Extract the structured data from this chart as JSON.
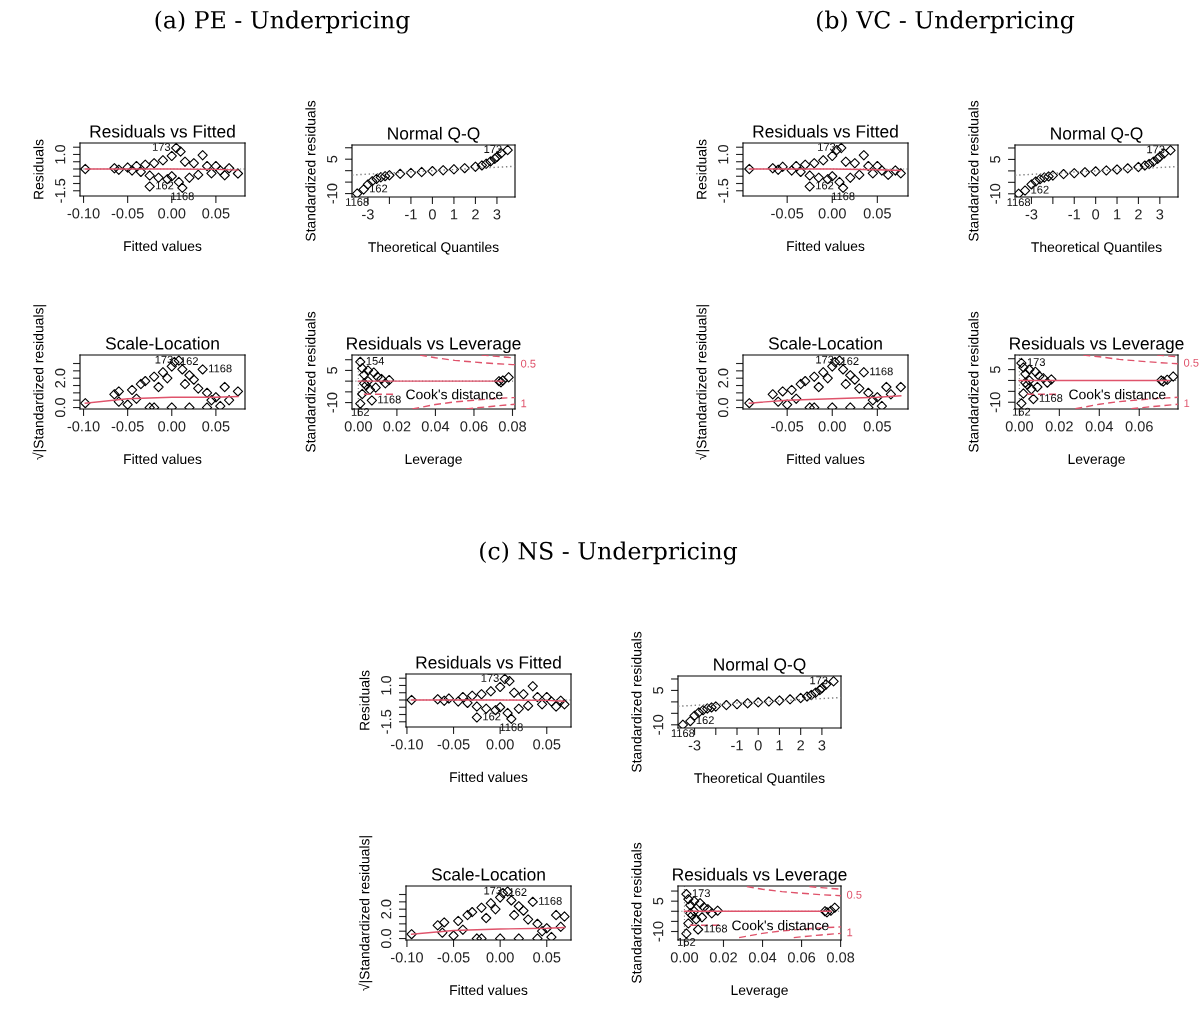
{
  "chart_data": [
    {
      "type": "scatter",
      "title": "Residuals vs Fitted",
      "xlabel": "Fitted values",
      "ylabel": "Residuals",
      "annotations": [
        "(a) PE - Underpricing",
        {
          "text": "173",
          "x": 0.005,
          "y": 1.45
        },
        {
          "text": "162",
          "x": -0.025,
          "y": -1.2
        },
        {
          "text": "1168",
          "x": 0.012,
          "y": -1.3
        }
      ],
      "xlim": [
        -0.104,
        0.083
      ],
      "xticks": [
        {
          "value": -0.1,
          "label": "-0.10"
        },
        {
          "value": -0.05,
          "label": "-0.05"
        },
        {
          "value": 0,
          "label": "0.00"
        },
        {
          "value": 0.05,
          "label": "0.05"
        }
      ],
      "ylim": [
        -1.86,
        1.79
      ],
      "yticks": [
        {
          "value": -1.5,
          "label": "-1.5"
        },
        {
          "value": -1,
          "label": null
        },
        {
          "value": -0.5,
          "label": null
        },
        {
          "value": 0,
          "label": null
        },
        {
          "value": 0.5,
          "label": null
        },
        {
          "value": 1,
          "label": "1.0"
        },
        {
          "value": 1.5,
          "label": null
        }
      ],
      "ref_lines": [
        {
          "axis": "y",
          "value": 0,
          "color": "#808080",
          "line_style": "dotted"
        }
      ],
      "series": [
        {
          "color": "#000000",
          "marker": "diamond",
          "x": [
            -0.098,
            -0.065,
            -0.06,
            -0.05,
            -0.045,
            -0.04,
            -0.035,
            -0.03,
            -0.025,
            -0.02,
            -0.015,
            -0.01,
            -0.005,
            0.0,
            0.0,
            0.005,
            0.01,
            0.008,
            0.012,
            0.015,
            0.02,
            0.025,
            0.03,
            0.035,
            0.04,
            0.045,
            0.05,
            0.055,
            0.06,
            0.065,
            0.075,
            -0.025
          ],
          "values": [
            0.0,
            0.05,
            -0.05,
            0.1,
            -0.1,
            0.2,
            -0.2,
            0.3,
            -0.45,
            0.4,
            -0.6,
            0.6,
            -0.7,
            0.9,
            -0.5,
            1.45,
            1.2,
            -0.9,
            -1.3,
            0.5,
            -0.6,
            0.4,
            -0.4,
            0.95,
            0.2,
            -0.3,
            0.2,
            -0.1,
            -0.43,
            0.05,
            -0.31,
            -1.2
          ]
        },
        {
          "type": "line",
          "color": "#df536b",
          "x": [
            -0.098,
            -0.05,
            0.0,
            0.05,
            0.075
          ],
          "values": [
            0.0,
            0.0,
            0.0,
            -0.03,
            -0.08
          ]
        }
      ]
    },
    {
      "type": "scatter",
      "title": "Normal Q-Q",
      "xlabel": "Theoretical Quantiles",
      "ylabel": "Standardized residuals",
      "annotations": [
        {
          "text": "173",
          "x": 3.5,
          "y": 9.0
        },
        {
          "text": "162",
          "x": -3.2,
          "y": -8.2
        },
        {
          "text": "1168",
          "x": -3.5,
          "y": -10
        }
      ],
      "xlim": [
        -3.74,
        3.84
      ],
      "xticks": [
        {
          "value": -3,
          "label": "-3"
        },
        {
          "value": -2,
          "label": null
        },
        {
          "value": -1,
          "label": "-1"
        },
        0,
        1,
        2,
        3
      ],
      "ylim": [
        -11.5,
        11.2
      ],
      "yticks": [
        {
          "value": -10,
          "label": "-10"
        },
        {
          "value": -5,
          "label": null
        },
        {
          "value": 0,
          "label": null
        },
        5,
        {
          "value": 10,
          "label": null
        }
      ],
      "series": [
        {
          "color": "#000000",
          "marker": "diamond",
          "x": [
            -3.5,
            -3.2,
            -3.0,
            -2.8,
            -2.6,
            -2.4,
            -2.2,
            -2.0,
            -1.5,
            -1.0,
            -0.5,
            0.0,
            0.5,
            1.0,
            1.5,
            2.0,
            2.3,
            2.5,
            2.7,
            2.9,
            3.0,
            3.2,
            3.5
          ],
          "values": [
            -10,
            -8.2,
            -6.0,
            -4.6,
            -3.6,
            -2.9,
            -2.4,
            -2.0,
            -1.4,
            -1.0,
            -0.6,
            -0.2,
            0.2,
            0.6,
            1.1,
            1.7,
            2.3,
            3.0,
            4.0,
            5.2,
            6.0,
            7.6,
            9.0
          ]
        },
        {
          "type": "line",
          "color": "#808080",
          "line_style": "dotted",
          "x": [
            -3.74,
            3.84
          ],
          "values": [
            -1.9,
            1.9
          ]
        }
      ]
    },
    {
      "type": "scatter",
      "title": "Scale-Location",
      "xlabel": "Fitted values",
      "ylabel": "√|Standardized residuals|",
      "annotations": [
        {
          "text": "162",
          "x": 0.003,
          "y": 3.1
        },
        {
          "text": "173",
          "x": 0.008,
          "y": 3.2
        },
        {
          "text": "1168",
          "x": 0.035,
          "y": 2.6
        }
      ],
      "xlim": [
        -0.104,
        0.083
      ],
      "xticks": [
        {
          "value": -0.1,
          "label": "-0.10"
        },
        {
          "value": -0.05,
          "label": "-0.05"
        },
        {
          "value": 0,
          "label": "0.00"
        },
        {
          "value": 0.05,
          "label": "0.05"
        }
      ],
      "ylim": [
        -0.1,
        3.58
      ],
      "yticks": [
        {
          "value": 0,
          "label": "0.0"
        },
        {
          "value": 0.5,
          "label": null
        },
        {
          "value": 1,
          "label": null
        },
        {
          "value": 1.5,
          "label": null
        },
        {
          "value": 2,
          "label": "2.0"
        },
        {
          "value": 2.5,
          "label": null
        },
        {
          "value": 3,
          "label": null
        }
      ],
      "series": [
        {
          "color": "#000000",
          "marker": "diamond",
          "x": [
            -0.098,
            -0.065,
            -0.06,
            -0.06,
            -0.05,
            -0.045,
            -0.04,
            -0.035,
            -0.03,
            -0.025,
            -0.02,
            -0.015,
            -0.01,
            -0.005,
            0.0,
            0.003,
            0.008,
            0.012,
            0.015,
            0.02,
            0.025,
            0.03,
            0.035,
            0.04,
            0.045,
            0.05,
            0.055,
            0.06,
            0.065,
            0.075,
            0.0,
            0.02,
            0.04,
            -0.02
          ],
          "values": [
            0.3,
            0.9,
            0.4,
            1.1,
            0.2,
            1.2,
            0.6,
            1.6,
            1.8,
            0.0,
            2.1,
            1.4,
            2.4,
            2.0,
            2.8,
            3.1,
            3.2,
            2.6,
            1.6,
            2.2,
            1.9,
            1.3,
            2.6,
            1.0,
            0.5,
            0.7,
            0.1,
            1.4,
            0.5,
            1.1,
            0.0,
            0.0,
            0.0,
            0.0
          ]
        },
        {
          "type": "line",
          "color": "#df536b",
          "x": [
            -0.098,
            -0.05,
            0.0,
            0.05,
            0.075
          ],
          "values": [
            0.3,
            0.6,
            0.7,
            0.7,
            0.75
          ]
        }
      ]
    },
    {
      "type": "scatter",
      "title": "Residuals vs Leverage",
      "xlabel": "Leverage",
      "ylabel": "Standardized residuals",
      "legend": "bottom",
      "annotations": [
        {
          "text": "154",
          "x": 0.001,
          "y": 9.0
        },
        {
          "text": "162",
          "x": 0.001,
          "y": -10.5
        },
        {
          "text": "1168",
          "x": 0.007,
          "y": -9.0
        },
        {
          "text": "0.5",
          "x": 0.0813,
          "y": 7.7
        },
        {
          "text": "1",
          "x": 0.0813,
          "y": -10.8
        }
      ],
      "xlim": [
        -0.0033,
        0.0813
      ],
      "xticks": [
        {
          "value": 0,
          "label": "0.00"
        },
        {
          "value": 0.02,
          "label": "0.02"
        },
        {
          "value": 0.04,
          "label": "0.04"
        },
        {
          "value": 0.06,
          "label": "0.06"
        },
        {
          "value": 0.08,
          "label": "0.08"
        }
      ],
      "ylim": [
        -13,
        12.2
      ],
      "yticks": [
        {
          "value": -10,
          "label": "-10"
        },
        {
          "value": -5,
          "label": null
        },
        {
          "value": 0,
          "label": null
        },
        5,
        {
          "value": 10,
          "label": null
        }
      ],
      "ref_lines": [
        {
          "axis": "y",
          "value": 0,
          "color": "#808080",
          "line_style": "dotted"
        },
        {
          "axis": "x",
          "value": 0,
          "color": "#808080",
          "line_style": "dotted"
        }
      ],
      "series": [
        {
          "color": "#000000",
          "marker": "diamond",
          "x": [
            0.001,
            0.002,
            0.003,
            0.004,
            0.001,
            0.002,
            0.005,
            0.006,
            0.007,
            0.008,
            0.009,
            0.01,
            0.012,
            0.014,
            0.016,
            0.003,
            0.005,
            0.073,
            0.074,
            0.075,
            0.078
          ],
          "values": [
            9.0,
            6.0,
            3.0,
            -2.0,
            -10.5,
            -6.0,
            5.0,
            -4.0,
            -9.0,
            4.0,
            -3.0,
            2.0,
            1.0,
            -1.0,
            0.5,
            -1.0,
            0.0,
            0.0,
            -0.5,
            0.3,
            1.8
          ]
        },
        {
          "type": "line",
          "color": "#df536b",
          "x": [
            0.0,
            0.015,
            0.075
          ],
          "values": [
            0.0,
            0.0,
            0.0
          ]
        },
        {
          "type": "line",
          "name": "Cook's distance",
          "color": "#df536b",
          "line_style": "dashed",
          "x": [
            0.032,
            0.04,
            0.05,
            0.06,
            0.07,
            0.08,
            0.0813
          ],
          "values": [
            12.2,
            10.9,
            9.7,
            8.9,
            8.2,
            7.7,
            7.7
          ]
        },
        {
          "type": "line",
          "color": "#df536b",
          "line_style": "dashed",
          "x": [
            0.028,
            0.04,
            0.05,
            0.06,
            0.07,
            0.08,
            0.0813
          ],
          "values": [
            -13.0,
            -10.9,
            -9.7,
            -8.9,
            -8.2,
            -7.7,
            -7.7
          ]
        },
        {
          "type": "line",
          "color": "#df536b",
          "line_style": "dashed",
          "x": [
            0.064,
            0.07,
            0.08,
            0.0813
          ],
          "values": [
            12.2,
            11.7,
            10.9,
            10.8
          ]
        },
        {
          "type": "line",
          "color": "#df536b",
          "line_style": "dashed",
          "x": [
            0.056,
            0.06,
            0.07,
            0.08,
            0.0813
          ],
          "values": [
            -13.0,
            -12.6,
            -11.7,
            -10.9,
            -10.8
          ]
        }
      ]
    },
    {
      "type": "scatter",
      "title": "Residuals vs Fitted",
      "xlabel": "Fitted values",
      "ylabel": "Residuals",
      "annotations": [
        "(b) VC - Underpricing",
        {
          "text": "173",
          "x": 0.01,
          "y": 1.45
        },
        {
          "text": "162",
          "x": -0.025,
          "y": -1.2
        },
        {
          "text": "1168",
          "x": 0.012,
          "y": -1.3
        }
      ],
      "xlim": [
        -0.099,
        0.084
      ],
      "xticks": [
        {
          "value": -0.05,
          "label": "-0.05"
        },
        {
          "value": 0,
          "label": "0.00"
        },
        {
          "value": 0.05,
          "label": "0.05"
        }
      ],
      "ylim": [
        -1.86,
        1.79
      ],
      "yticks": [
        {
          "value": -1.5,
          "label": "-1.5"
        },
        {
          "value": -1,
          "label": null
        },
        {
          "value": -0.5,
          "label": null
        },
        {
          "value": 0,
          "label": null
        },
        {
          "value": 0.5,
          "label": null
        },
        {
          "value": 1,
          "label": "1.0"
        },
        {
          "value": 1.5,
          "label": null
        }
      ],
      "ref_lines": [
        {
          "axis": "y",
          "value": 0,
          "color": "#808080",
          "line_style": "dotted"
        }
      ],
      "series": [
        {
          "color": "#000000",
          "marker": "diamond",
          "x": [
            -0.092,
            -0.066,
            -0.06,
            -0.055,
            -0.045,
            -0.04,
            -0.035,
            -0.03,
            -0.025,
            -0.02,
            -0.015,
            -0.01,
            -0.005,
            0.0,
            0.0,
            0.005,
            0.01,
            0.008,
            0.012,
            0.015,
            0.02,
            0.025,
            0.03,
            0.035,
            0.04,
            0.045,
            0.05,
            0.055,
            0.062,
            0.07,
            0.076,
            -0.025
          ],
          "values": [
            0.0,
            0.05,
            -0.05,
            0.15,
            -0.1,
            0.2,
            -0.2,
            0.3,
            -0.45,
            0.4,
            -0.6,
            0.6,
            -0.7,
            0.9,
            -0.5,
            1.3,
            1.45,
            -0.9,
            -1.3,
            0.5,
            -0.6,
            0.4,
            -0.4,
            0.95,
            0.2,
            -0.3,
            0.2,
            -0.1,
            -0.4,
            -0.1,
            -0.3,
            -1.2
          ]
        },
        {
          "type": "line",
          "color": "#df536b",
          "x": [
            -0.092,
            -0.05,
            0.0,
            0.05,
            0.076
          ],
          "values": [
            0.0,
            0.0,
            0.0,
            -0.05,
            -0.1
          ]
        }
      ]
    },
    {
      "type": "scatter",
      "title": "Normal Q-Q",
      "xlabel": "Theoretical Quantiles",
      "ylabel": "Standardized residuals",
      "annotations": [
        {
          "text": "173",
          "x": 3.5,
          "y": 9.0
        },
        {
          "text": "162",
          "x": -3.3,
          "y": -8.6
        },
        {
          "text": "1168",
          "x": -3.6,
          "y": -10
        }
      ],
      "xlim": [
        -3.77,
        3.85
      ],
      "xticks": [
        {
          "value": -3,
          "label": "-3"
        },
        {
          "value": -2,
          "label": null
        },
        {
          "value": -1,
          "label": "-1"
        },
        0,
        1,
        2,
        3
      ],
      "ylim": [
        -11.4,
        11.3
      ],
      "yticks": [
        {
          "value": -10,
          "label": "-10"
        },
        {
          "value": -5,
          "label": null
        },
        {
          "value": 0,
          "label": null
        },
        5,
        {
          "value": 10,
          "label": null
        }
      ],
      "series": [
        {
          "color": "#000000",
          "marker": "diamond",
          "x": [
            -3.6,
            -3.3,
            -3.0,
            -2.8,
            -2.6,
            -2.4,
            -2.2,
            -2.0,
            -1.5,
            -1.0,
            -0.5,
            0.0,
            0.5,
            1.0,
            1.5,
            2.0,
            2.3,
            2.5,
            2.7,
            2.9,
            3.0,
            3.2,
            3.5
          ],
          "values": [
            -10,
            -8.6,
            -5.9,
            -4.6,
            -3.6,
            -2.9,
            -2.4,
            -2.0,
            -1.4,
            -1.0,
            -0.6,
            -0.2,
            0.2,
            0.6,
            1.1,
            1.7,
            2.3,
            3.0,
            4.0,
            5.3,
            6.2,
            7.6,
            9.0
          ]
        },
        {
          "type": "line",
          "color": "#808080",
          "line_style": "dotted",
          "x": [
            -3.77,
            3.85
          ],
          "values": [
            -1.9,
            1.9
          ]
        }
      ]
    },
    {
      "type": "scatter",
      "title": "Scale-Location",
      "xlabel": "Fitted values",
      "ylabel": "√|Standardized residuals|",
      "annotations": [
        {
          "text": "162",
          "x": 0.003,
          "y": 3.1
        },
        {
          "text": "173",
          "x": 0.008,
          "y": 3.2
        },
        {
          "text": "1168",
          "x": 0.035,
          "y": 2.4
        }
      ],
      "xlim": [
        -0.099,
        0.084
      ],
      "xticks": [
        {
          "value": -0.05,
          "label": "-0.05"
        },
        {
          "value": 0,
          "label": "0.00"
        },
        {
          "value": 0.05,
          "label": "0.05"
        }
      ],
      "ylim": [
        -0.1,
        3.58
      ],
      "yticks": [
        {
          "value": 0,
          "label": "0.0"
        },
        {
          "value": 0.5,
          "label": null
        },
        {
          "value": 1,
          "label": null
        },
        {
          "value": 1.5,
          "label": null
        },
        {
          "value": 2,
          "label": "2.0"
        },
        {
          "value": 2.5,
          "label": null
        },
        {
          "value": 3,
          "label": null
        }
      ],
      "series": [
        {
          "color": "#000000",
          "marker": "diamond",
          "x": [
            -0.092,
            -0.066,
            -0.06,
            -0.055,
            -0.05,
            -0.045,
            -0.04,
            -0.035,
            -0.03,
            -0.025,
            -0.02,
            -0.015,
            -0.01,
            -0.005,
            0.0,
            0.003,
            0.008,
            0.012,
            0.015,
            0.02,
            0.025,
            0.03,
            0.035,
            0.04,
            0.045,
            0.05,
            0.055,
            0.06,
            0.065,
            0.076,
            0.0,
            0.02,
            0.04,
            -0.02
          ],
          "values": [
            0.3,
            0.9,
            0.4,
            1.1,
            0.2,
            1.2,
            0.6,
            1.6,
            1.8,
            0.0,
            2.1,
            1.4,
            2.4,
            2.0,
            2.8,
            3.1,
            3.2,
            2.6,
            1.6,
            2.2,
            1.9,
            1.3,
            2.4,
            1.0,
            0.5,
            0.7,
            0.1,
            1.4,
            0.9,
            1.4,
            0.0,
            0.0,
            0.0,
            0.0
          ]
        },
        {
          "type": "line",
          "color": "#df536b",
          "x": [
            -0.092,
            -0.05,
            0.0,
            0.05,
            0.076
          ],
          "values": [
            0.3,
            0.5,
            0.6,
            0.7,
            0.8
          ]
        }
      ]
    },
    {
      "type": "scatter",
      "title": "Residuals vs Leverage",
      "xlabel": "Leverage",
      "ylabel": "Standardized residuals",
      "legend": "bottom",
      "annotations": [
        {
          "text": "173",
          "x": 0.001,
          "y": 8.0
        },
        {
          "text": "162",
          "x": 0.001,
          "y": -10.5
        },
        {
          "text": "1168",
          "x": 0.007,
          "y": -8.5
        },
        {
          "text": "0.5",
          "x": 0.0794,
          "y": 7.7
        },
        {
          "text": "1",
          "x": 0.0794,
          "y": -10.9
        }
      ],
      "xlim": [
        -0.0022,
        0.0794
      ],
      "xticks": [
        {
          "value": 0,
          "label": "0.00"
        },
        {
          "value": 0.02,
          "label": "0.02"
        },
        {
          "value": 0.04,
          "label": "0.04"
        },
        {
          "value": 0.06,
          "label": "0.06"
        }
      ],
      "ylim": [
        -13.1,
        11.7
      ],
      "yticks": [
        {
          "value": -10,
          "label": "-10"
        },
        {
          "value": -5,
          "label": null
        },
        {
          "value": 0,
          "label": null
        },
        5,
        {
          "value": 10,
          "label": null
        }
      ],
      "ref_lines": [
        {
          "axis": "y",
          "value": 0,
          "color": "#808080",
          "line_style": "dotted"
        },
        {
          "axis": "x",
          "value": 0,
          "color": "#808080",
          "line_style": "dotted"
        }
      ],
      "series": [
        {
          "color": "#000000",
          "marker": "diamond",
          "x": [
            0.001,
            0.002,
            0.003,
            0.004,
            0.001,
            0.002,
            0.005,
            0.006,
            0.007,
            0.008,
            0.009,
            0.01,
            0.012,
            0.014,
            0.016,
            0.003,
            0.005,
            0.071,
            0.072,
            0.074,
            0.077
          ],
          "values": [
            8.0,
            6.0,
            3.0,
            -2.0,
            -10.5,
            -6.0,
            5.0,
            -4.0,
            -8.5,
            4.0,
            -3.0,
            2.0,
            1.0,
            -1.0,
            0.5,
            -1.0,
            0.0,
            0.0,
            -0.5,
            0.3,
            1.8
          ]
        },
        {
          "type": "line",
          "color": "#df536b",
          "x": [
            0.0,
            0.015,
            0.075
          ],
          "values": [
            0.0,
            0.0,
            0.0
          ]
        },
        {
          "type": "line",
          "name": "Cook's distance",
          "color": "#df536b",
          "line_style": "dashed",
          "x": [
            0.032,
            0.04,
            0.05,
            0.06,
            0.07,
            0.0794
          ],
          "values": [
            11.7,
            10.9,
            9.7,
            8.9,
            8.2,
            7.7
          ]
        },
        {
          "type": "line",
          "color": "#df536b",
          "line_style": "dashed",
          "x": [
            0.028,
            0.04,
            0.05,
            0.06,
            0.07,
            0.0794
          ],
          "values": [
            -13.0,
            -10.9,
            -9.7,
            -8.9,
            -8.2,
            -7.7
          ]
        },
        {
          "type": "line",
          "color": "#df536b",
          "line_style": "dashed",
          "x": [
            0.069,
            0.075,
            0.0794
          ],
          "values": [
            11.7,
            11.2,
            10.9
          ]
        },
        {
          "type": "line",
          "color": "#df536b",
          "line_style": "dashed",
          "x": [
            0.056,
            0.06,
            0.07,
            0.0794
          ],
          "values": [
            -13.0,
            -12.6,
            -11.7,
            -10.9
          ]
        }
      ]
    },
    {
      "type": "scatter",
      "title": "Residuals vs Fitted",
      "xlabel": "Fitted values",
      "ylabel": "Residuals",
      "annotations": [
        "(c) NS - Underpricing",
        {
          "text": "173",
          "x": 0.005,
          "y": 1.45
        },
        {
          "text": "162",
          "x": -0.025,
          "y": -1.2
        },
        {
          "text": "1168",
          "x": 0.012,
          "y": -1.3
        }
      ],
      "xlim": [
        -0.101,
        0.076
      ],
      "xticks": [
        {
          "value": -0.1,
          "label": "-0.10"
        },
        {
          "value": -0.05,
          "label": "-0.05"
        },
        {
          "value": 0,
          "label": "0.00"
        },
        {
          "value": 0.05,
          "label": "0.05"
        }
      ],
      "ylim": [
        -1.86,
        1.79
      ],
      "yticks": [
        {
          "value": -1.5,
          "label": "-1.5"
        },
        {
          "value": -1,
          "label": null
        },
        {
          "value": -0.5,
          "label": null
        },
        {
          "value": 0,
          "label": null
        },
        {
          "value": 0.5,
          "label": null
        },
        {
          "value": 1,
          "label": "1.0"
        },
        {
          "value": 1.5,
          "label": null
        }
      ],
      "ref_lines": [
        {
          "axis": "y",
          "value": 0,
          "color": "#808080",
          "line_style": "dotted"
        }
      ],
      "series": [
        {
          "color": "#000000",
          "marker": "diamond",
          "x": [
            -0.095,
            -0.067,
            -0.06,
            -0.055,
            -0.045,
            -0.04,
            -0.035,
            -0.03,
            -0.025,
            -0.02,
            -0.015,
            -0.01,
            -0.005,
            0.0,
            0.0,
            0.005,
            0.01,
            0.008,
            0.012,
            0.015,
            0.02,
            0.025,
            0.03,
            0.035,
            0.04,
            0.045,
            0.05,
            0.055,
            0.06,
            0.065,
            0.069,
            -0.025
          ],
          "values": [
            0.0,
            0.05,
            -0.05,
            0.1,
            -0.1,
            0.2,
            -0.2,
            0.3,
            -0.45,
            0.4,
            -0.6,
            0.6,
            -0.7,
            0.9,
            -0.5,
            1.45,
            1.3,
            -0.9,
            -1.3,
            0.5,
            -0.6,
            0.4,
            -0.4,
            0.95,
            0.2,
            -0.3,
            0.2,
            -0.1,
            -0.45,
            -0.05,
            -0.3,
            -1.2
          ]
        },
        {
          "type": "line",
          "color": "#df536b",
          "x": [
            -0.095,
            -0.05,
            0.0,
            0.05,
            0.069
          ],
          "values": [
            0.0,
            0.0,
            0.0,
            -0.03,
            -0.08
          ]
        }
      ]
    },
    {
      "type": "scatter",
      "title": "Normal Q-Q",
      "xlabel": "Theoretical Quantiles",
      "ylabel": "Standardized residuals",
      "annotations": [
        {
          "text": "173",
          "x": 3.55,
          "y": 9.0
        },
        {
          "text": "162",
          "x": -3.2,
          "y": -8.4
        },
        {
          "text": "1168",
          "x": -3.55,
          "y": -10
        }
      ],
      "xlim": [
        -3.78,
        3.9
      ],
      "xticks": [
        {
          "value": -3,
          "label": "-3"
        },
        {
          "value": -2,
          "label": null
        },
        {
          "value": -1,
          "label": "-1"
        },
        0,
        1,
        2,
        3
      ],
      "ylim": [
        -11.4,
        11.3
      ],
      "yticks": [
        {
          "value": -10,
          "label": "-10"
        },
        {
          "value": -5,
          "label": null
        },
        {
          "value": 0,
          "label": null
        },
        5,
        {
          "value": 10,
          "label": null
        }
      ],
      "series": [
        {
          "color": "#000000",
          "marker": "diamond",
          "x": [
            -3.55,
            -3.2,
            -3.0,
            -2.8,
            -2.6,
            -2.4,
            -2.2,
            -2.0,
            -1.5,
            -1.0,
            -0.5,
            0.0,
            0.5,
            1.0,
            1.5,
            2.0,
            2.3,
            2.5,
            2.7,
            2.9,
            3.0,
            3.2,
            3.55
          ],
          "values": [
            -10,
            -8.4,
            -6.0,
            -4.6,
            -3.6,
            -2.9,
            -2.4,
            -2.0,
            -1.4,
            -1.0,
            -0.6,
            -0.2,
            0.2,
            0.6,
            1.1,
            1.7,
            2.3,
            3.0,
            4.0,
            5.2,
            6.0,
            7.6,
            9.0
          ]
        },
        {
          "type": "line",
          "color": "#808080",
          "line_style": "dotted",
          "x": [
            -3.78,
            3.9
          ],
          "values": [
            -1.9,
            1.9
          ]
        }
      ]
    },
    {
      "type": "scatter",
      "title": "Scale-Location",
      "xlabel": "Fitted values",
      "ylabel": "√|Standardized residuals|",
      "annotations": [
        {
          "text": "162",
          "x": 0.003,
          "y": 3.1
        },
        {
          "text": "173",
          "x": 0.008,
          "y": 3.2
        },
        {
          "text": "1168",
          "x": 0.035,
          "y": 2.5
        }
      ],
      "xlim": [
        -0.101,
        0.076
      ],
      "xticks": [
        {
          "value": -0.1,
          "label": "-0.10"
        },
        {
          "value": -0.05,
          "label": "-0.05"
        },
        {
          "value": 0,
          "label": "0.00"
        },
        {
          "value": 0.05,
          "label": "0.05"
        }
      ],
      "ylim": [
        -0.1,
        3.58
      ],
      "yticks": [
        {
          "value": 0,
          "label": "0.0"
        },
        {
          "value": 0.5,
          "label": null
        },
        {
          "value": 1,
          "label": null
        },
        {
          "value": 1.5,
          "label": null
        },
        {
          "value": 2,
          "label": "2.0"
        },
        {
          "value": 2.5,
          "label": null
        },
        {
          "value": 3,
          "label": null
        }
      ],
      "series": [
        {
          "color": "#000000",
          "marker": "diamond",
          "x": [
            -0.095,
            -0.067,
            -0.062,
            -0.06,
            -0.05,
            -0.045,
            -0.04,
            -0.035,
            -0.03,
            -0.025,
            -0.02,
            -0.015,
            -0.01,
            -0.005,
            0.0,
            0.003,
            0.008,
            0.012,
            0.015,
            0.02,
            0.025,
            0.03,
            0.035,
            0.04,
            0.045,
            0.05,
            0.055,
            0.06,
            0.065,
            0.069,
            0.0,
            0.02,
            0.04,
            -0.02
          ],
          "values": [
            0.3,
            0.9,
            0.4,
            1.1,
            0.2,
            1.2,
            0.6,
            1.6,
            1.8,
            0.0,
            2.1,
            1.4,
            2.4,
            2.0,
            2.8,
            3.1,
            3.2,
            2.6,
            1.6,
            2.2,
            1.9,
            1.3,
            2.5,
            1.0,
            0.5,
            0.7,
            0.1,
            1.6,
            0.8,
            1.5,
            0.0,
            0.0,
            0.0,
            0.0
          ]
        },
        {
          "type": "line",
          "color": "#df536b",
          "x": [
            -0.095,
            -0.05,
            0.0,
            0.05,
            0.069
          ],
          "values": [
            0.3,
            0.55,
            0.65,
            0.7,
            0.75
          ]
        }
      ]
    },
    {
      "type": "scatter",
      "title": "Residuals vs Leverage",
      "xlabel": "Leverage",
      "ylabel": "Standardized residuals",
      "legend": "bottom",
      "annotations": [
        {
          "text": "173",
          "x": 0.001,
          "y": 8.5
        },
        {
          "text": "162",
          "x": 0.001,
          "y": -11.0
        },
        {
          "text": "1168",
          "x": 0.007,
          "y": -9.0
        },
        {
          "text": "0.5",
          "x": 0.0802,
          "y": 7.7
        },
        {
          "text": "1",
          "x": 0.0802,
          "y": -10.9
        }
      ],
      "xlim": [
        -0.0033,
        0.0802
      ],
      "xticks": [
        {
          "value": 0,
          "label": "0.00"
        },
        {
          "value": 0.02,
          "label": "0.02"
        },
        {
          "value": 0.04,
          "label": "0.04"
        },
        {
          "value": 0.06,
          "label": "0.06"
        },
        {
          "value": 0.08,
          "label": "0.08"
        }
      ],
      "ylim": [
        -14.2,
        12.5
      ],
      "yticks": [
        {
          "value": -10,
          "label": "-10"
        },
        {
          "value": -5,
          "label": null
        },
        {
          "value": 0,
          "label": null
        },
        5,
        {
          "value": 10,
          "label": null
        }
      ],
      "ref_lines": [
        {
          "axis": "y",
          "value": 0,
          "color": "#808080",
          "line_style": "dotted"
        },
        {
          "axis": "x",
          "value": 0,
          "color": "#808080",
          "line_style": "dotted"
        }
      ],
      "series": [
        {
          "color": "#000000",
          "marker": "diamond",
          "x": [
            0.001,
            0.002,
            0.003,
            0.004,
            0.001,
            0.002,
            0.005,
            0.006,
            0.007,
            0.008,
            0.009,
            0.01,
            0.012,
            0.014,
            0.017,
            0.003,
            0.005,
            0.072,
            0.073,
            0.075,
            0.077
          ],
          "values": [
            8.5,
            6.0,
            3.0,
            -2.0,
            -11.0,
            -6.0,
            5.0,
            -4.0,
            -9.0,
            4.0,
            -3.0,
            2.0,
            1.0,
            -1.0,
            0.3,
            -1.0,
            0.0,
            0.0,
            -0.5,
            0.3,
            1.8
          ]
        },
        {
          "type": "line",
          "color": "#df536b",
          "x": [
            0.0,
            0.017,
            0.075
          ],
          "values": [
            0.0,
            0.0,
            0.0
          ]
        },
        {
          "type": "line",
          "name": "Cook's distance",
          "color": "#df536b",
          "line_style": "dashed",
          "x": [
            0.032,
            0.04,
            0.05,
            0.06,
            0.07,
            0.0802
          ],
          "values": [
            12.2,
            10.9,
            9.7,
            8.9,
            8.2,
            7.7
          ]
        },
        {
          "type": "line",
          "color": "#df536b",
          "line_style": "dashed",
          "x": [
            0.028,
            0.04,
            0.05,
            0.06,
            0.07,
            0.0802
          ],
          "values": [
            -13.0,
            -10.9,
            -9.7,
            -8.9,
            -8.2,
            -7.7
          ]
        },
        {
          "type": "line",
          "color": "#df536b",
          "line_style": "dashed",
          "x": [
            0.064,
            0.07,
            0.0802
          ],
          "values": [
            12.2,
            11.7,
            10.9
          ]
        },
        {
          "type": "line",
          "color": "#df536b",
          "line_style": "dashed",
          "x": [
            0.056,
            0.06,
            0.07,
            0.0802
          ],
          "values": [
            -13.0,
            -12.6,
            -11.7,
            -10.9
          ]
        }
      ]
    }
  ]
}
